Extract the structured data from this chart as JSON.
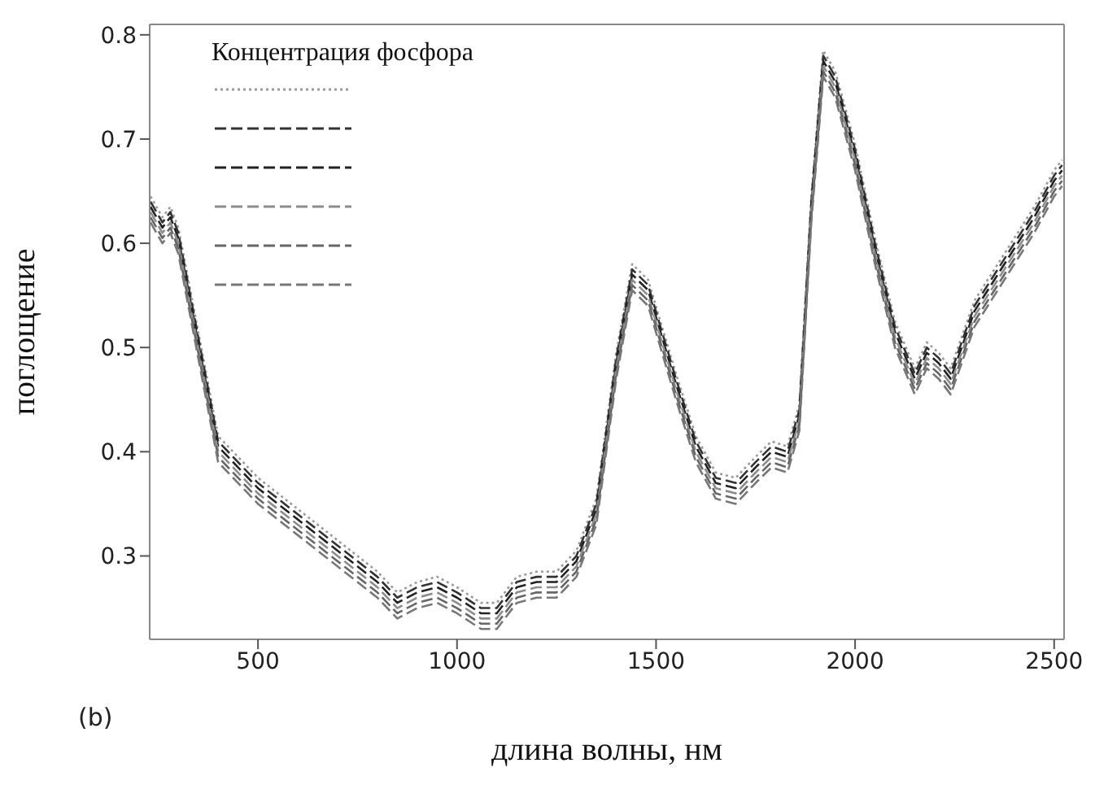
{
  "chart_data": {
    "type": "line",
    "xlabel": "длина волны, нм",
    "ylabel": "поглощение",
    "legend_title": "Концентрация фосфора",
    "grid": false,
    "marker": "none",
    "annotations": [
      "(b)"
    ],
    "xlim": [
      228,
      2525
    ],
    "xticks": [
      500,
      1000,
      1500,
      2000,
      2500
    ],
    "ylim": [
      0.22,
      0.81
    ],
    "yticks": [
      0.3,
      0.4,
      0.5,
      0.6,
      0.7,
      0.8
    ],
    "x": [
      230,
      260,
      280,
      300,
      350,
      400,
      500,
      600,
      700,
      800,
      850,
      900,
      950,
      1000,
      1060,
      1100,
      1150,
      1200,
      1250,
      1300,
      1350,
      1400,
      1440,
      1480,
      1550,
      1600,
      1650,
      1700,
      1750,
      1790,
      1830,
      1860,
      1890,
      1920,
      1950,
      2000,
      2050,
      2100,
      2150,
      2180,
      2210,
      2240,
      2300,
      2400,
      2450,
      2500,
      2520
    ],
    "series": [
      {
        "color": "#9a9a9a",
        "line_style": "dotted",
        "values": [
          0.645,
          0.625,
          0.635,
          0.615,
          0.515,
          0.415,
          0.375,
          0.345,
          0.315,
          0.285,
          0.265,
          0.275,
          0.28,
          0.27,
          0.255,
          0.255,
          0.28,
          0.285,
          0.285,
          0.305,
          0.355,
          0.495,
          0.58,
          0.565,
          0.475,
          0.415,
          0.38,
          0.375,
          0.395,
          0.41,
          0.405,
          0.445,
          0.645,
          0.785,
          0.765,
          0.695,
          0.605,
          0.525,
          0.48,
          0.505,
          0.495,
          0.48,
          0.545,
          0.605,
          0.635,
          0.67,
          0.68
        ]
      },
      {
        "color": "#333333",
        "line_style": "dashed",
        "values": [
          0.64,
          0.62,
          0.63,
          0.61,
          0.51,
          0.41,
          0.37,
          0.34,
          0.31,
          0.28,
          0.26,
          0.27,
          0.275,
          0.265,
          0.25,
          0.25,
          0.275,
          0.28,
          0.28,
          0.3,
          0.35,
          0.49,
          0.575,
          0.56,
          0.47,
          0.41,
          0.375,
          0.37,
          0.39,
          0.405,
          0.4,
          0.44,
          0.64,
          0.78,
          0.76,
          0.69,
          0.6,
          0.52,
          0.475,
          0.5,
          0.49,
          0.475,
          0.54,
          0.6,
          0.63,
          0.665,
          0.675
        ]
      },
      {
        "color": "#222222",
        "line_style": "dashed",
        "values": [
          0.635,
          0.615,
          0.625,
          0.605,
          0.505,
          0.405,
          0.365,
          0.335,
          0.305,
          0.275,
          0.255,
          0.265,
          0.27,
          0.26,
          0.245,
          0.245,
          0.27,
          0.275,
          0.275,
          0.295,
          0.345,
          0.485,
          0.57,
          0.555,
          0.465,
          0.405,
          0.37,
          0.365,
          0.385,
          0.4,
          0.395,
          0.435,
          0.635,
          0.775,
          0.755,
          0.685,
          0.595,
          0.515,
          0.47,
          0.495,
          0.485,
          0.47,
          0.535,
          0.595,
          0.625,
          0.66,
          0.67
        ]
      },
      {
        "color": "#8c8c8c",
        "line_style": "dashed",
        "values": [
          0.63,
          0.61,
          0.62,
          0.6,
          0.5,
          0.4,
          0.36,
          0.33,
          0.3,
          0.27,
          0.25,
          0.26,
          0.265,
          0.255,
          0.24,
          0.24,
          0.265,
          0.27,
          0.27,
          0.29,
          0.34,
          0.48,
          0.565,
          0.55,
          0.46,
          0.4,
          0.365,
          0.36,
          0.38,
          0.395,
          0.39,
          0.43,
          0.63,
          0.77,
          0.75,
          0.68,
          0.59,
          0.51,
          0.465,
          0.49,
          0.48,
          0.465,
          0.53,
          0.59,
          0.62,
          0.655,
          0.665
        ]
      },
      {
        "color": "#666666",
        "line_style": "dashed",
        "values": [
          0.625,
          0.605,
          0.615,
          0.595,
          0.495,
          0.395,
          0.355,
          0.325,
          0.295,
          0.265,
          0.245,
          0.255,
          0.26,
          0.25,
          0.235,
          0.235,
          0.26,
          0.265,
          0.265,
          0.285,
          0.335,
          0.475,
          0.56,
          0.545,
          0.455,
          0.395,
          0.36,
          0.355,
          0.375,
          0.39,
          0.385,
          0.425,
          0.625,
          0.765,
          0.745,
          0.675,
          0.585,
          0.505,
          0.46,
          0.485,
          0.475,
          0.46,
          0.525,
          0.585,
          0.615,
          0.65,
          0.66
        ]
      },
      {
        "color": "#777777",
        "line_style": "dashed",
        "values": [
          0.62,
          0.6,
          0.61,
          0.59,
          0.49,
          0.39,
          0.35,
          0.32,
          0.29,
          0.26,
          0.24,
          0.25,
          0.255,
          0.245,
          0.23,
          0.23,
          0.255,
          0.26,
          0.26,
          0.28,
          0.33,
          0.47,
          0.555,
          0.54,
          0.45,
          0.39,
          0.355,
          0.35,
          0.37,
          0.385,
          0.38,
          0.42,
          0.62,
          0.76,
          0.74,
          0.67,
          0.58,
          0.5,
          0.455,
          0.48,
          0.47,
          0.455,
          0.52,
          0.58,
          0.61,
          0.645,
          0.655
        ]
      }
    ]
  }
}
